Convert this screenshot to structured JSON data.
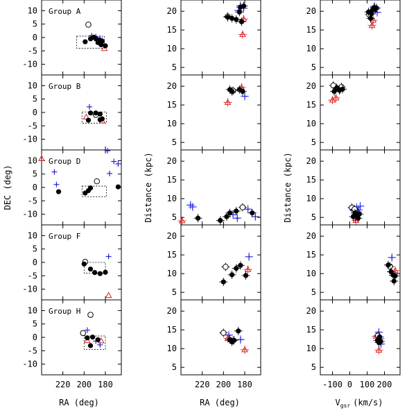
{
  "chart_data": {
    "type": "scatter",
    "title": "",
    "columns": [
      {
        "id": "radec",
        "xlabel": "RA (deg)",
        "ylabel": "DEC (deg)",
        "xlim": [
          240,
          165
        ],
        "ylim": [
          -14,
          14
        ],
        "xticks": [
          220,
          200,
          180
        ],
        "yticks": [
          10,
          5,
          0,
          -5,
          -10
        ]
      },
      {
        "id": "radist",
        "xlabel": "RA (deg)",
        "ylabel": "Distance (kpc)",
        "xlim": [
          240,
          165
        ],
        "ylim": [
          3,
          23
        ],
        "xticks": [
          220,
          200,
          180
        ],
        "yticks": [
          20,
          15,
          10,
          5
        ]
      },
      {
        "id": "vdist",
        "xlabel_main": "V",
        "xlabel_sub": "gsr",
        "xlabel_unit": "(km/s)",
        "xlabel": "Vgsr (km/s)",
        "ylabel": "Distance (kpc)",
        "xlim": [
          -170,
          290
        ],
        "ylim": [
          3,
          23
        ],
        "xticks": [
          -100,
          0,
          100,
          200
        ],
        "yticks": [
          20,
          15,
          10,
          5
        ]
      }
    ],
    "legend": {
      "filled_circle": "black filled circles",
      "open_circle": "black open circles",
      "plus": "blue crosses",
      "triangle": "red open triangles"
    },
    "colors": {
      "black": "#000000",
      "blue": "#2222dd",
      "red": "#dd2222"
    },
    "groups": [
      {
        "name": "Group A",
        "box": {
          "ra": [
            207,
            181
          ],
          "dec": [
            -4,
            0.5
          ]
        },
        "radec": {
          "filled": [
            [
              199,
              -1.6
            ],
            [
              194,
              -0.5
            ],
            [
              191,
              0.1
            ],
            [
              189,
              -0.5
            ],
            [
              187,
              -1.9
            ],
            [
              186,
              -0.9
            ],
            [
              183,
              -1.4
            ],
            [
              180,
              -3.1
            ],
            [
              184,
              -2.7
            ]
          ],
          "open": [
            [
              196,
              4.8
            ]
          ],
          "plus": [
            [
              189,
              0.3
            ],
            [
              185,
              -0.3
            ],
            [
              193,
              0.7
            ]
          ],
          "tri": [
            [
              181,
              -4.1
            ]
          ]
        },
        "radist": {
          "filled": [
            [
              196,
              18.4
            ],
            [
              192,
              18.1
            ],
            [
              188,
              17.8
            ],
            [
              185,
              19.8
            ],
            [
              184,
              21.1
            ],
            [
              181,
              21.4
            ],
            [
              183,
              17.2
            ]
          ],
          "open": [
            [
              196,
              18.6
            ]
          ],
          "plus": [
            [
              186,
              20.2
            ],
            [
              184,
              21.5
            ],
            [
              181,
              20.8
            ]
          ],
          "tri": [
            [
              182,
              13.8
            ],
            [
              181,
              17.9
            ]
          ]
        },
        "vdist": {
          "filled": [
            [
              108,
              19.8
            ],
            [
              125,
              19.3
            ],
            [
              132,
              20.4
            ],
            [
              140,
              21.0
            ],
            [
              146,
              20.5
            ],
            [
              120,
              18.1
            ],
            [
              153,
              20.9
            ]
          ],
          "open": [
            [
              112,
              19.1
            ]
          ],
          "plus": [
            [
              142,
              21.3
            ],
            [
              152,
              20.8
            ],
            [
              158,
              19.7
            ]
          ],
          "tri": [
            [
              135,
              17.6
            ],
            [
              128,
              16.2
            ]
          ]
        }
      },
      {
        "name": "Group B",
        "box": {
          "ra": [
            202,
            179
          ],
          "dec": [
            -4,
            0.2
          ]
        },
        "radec": {
          "filled": [
            [
              194,
              -0.2
            ],
            [
              196,
              -2.9
            ],
            [
              189,
              -0.2
            ],
            [
              185,
              -0.6
            ],
            [
              183,
              -2.4
            ],
            [
              185,
              -2.7
            ]
          ],
          "open": [
            [
              189,
              -0.9
            ]
          ],
          "plus": [
            [
              195,
              2.1
            ]
          ],
          "tri": [
            [
              198,
              -1.7
            ],
            [
              183,
              -3.1
            ]
          ]
        },
        "radist": {
          "filled": [
            [
              194,
              19.1
            ],
            [
              192,
              18.6
            ],
            [
              185,
              19.1
            ],
            [
              182,
              18.6
            ]
          ],
          "open": [
            [
              191,
              18.8
            ]
          ],
          "plus": [
            [
              180,
              17.3
            ]
          ],
          "tri": [
            [
              196,
              15.7
            ],
            [
              183,
              19.7
            ]
          ]
        },
        "vdist": {
          "filled": [
            [
              -90,
              18.6
            ],
            [
              -60,
              18.9
            ],
            [
              -42,
              19.2
            ],
            [
              -75,
              19.6
            ]
          ],
          "open": [
            [
              -95,
              20.2
            ],
            [
              -48,
              19.8
            ]
          ],
          "plus": [
            [
              -55,
              19.1
            ]
          ],
          "tri": [
            [
              -100,
              16.3
            ],
            [
              -80,
              16.9
            ]
          ]
        }
      },
      {
        "name": "Group D",
        "box": {
          "ra": [
            202,
            179
          ],
          "dec": [
            -3.5,
            0.5
          ]
        },
        "radec": {
          "filled": [
            [
              224,
              -1.6
            ],
            [
              199,
              -2.1
            ],
            [
              196,
              -1.2
            ],
            [
              194,
              -0.2
            ],
            [
              168,
              0.2
            ]
          ],
          "open": [
            [
              188,
              2.3
            ]
          ],
          "plus": [
            [
              228,
              5.8
            ],
            [
              226,
              1.1
            ],
            [
              178,
              13.7
            ],
            [
              172,
              9.7
            ],
            [
              168,
              8.8
            ],
            [
              176,
              5.2
            ]
          ],
          "tri": [
            [
              240,
              10.8
            ]
          ]
        },
        "radist": {
          "filled": [
            [
              224,
              4.8
            ],
            [
              203,
              4.2
            ],
            [
              197,
              5.2
            ],
            [
              194,
              6.2
            ],
            [
              188,
              6.7
            ],
            [
              173,
              6.2
            ]
          ],
          "open": [
            [
              182,
              7.7
            ]
          ],
          "plus": [
            [
              229,
              7.8
            ],
            [
              231,
              8.3
            ],
            [
              191,
              5.7
            ],
            [
              187,
              4.8
            ],
            [
              177,
              7.2
            ],
            [
              170,
              5.2
            ]
          ],
          "tri": [
            [
              239,
              4.1
            ]
          ]
        },
        "vdist": {
          "filled": [
            [
              20,
              5.2
            ],
            [
              30,
              6.2
            ],
            [
              40,
              5.5
            ],
            [
              55,
              5.9
            ],
            [
              48,
              4.8
            ],
            [
              35,
              5.8
            ]
          ],
          "open": [
            [
              12,
              7.6
            ],
            [
              28,
              7.2
            ]
          ],
          "plus": [
            [
              25,
              6.8
            ],
            [
              40,
              7.6
            ],
            [
              50,
              7.0
            ],
            [
              60,
              8.0
            ],
            [
              32,
              4.8
            ],
            [
              45,
              6.5
            ]
          ],
          "tri": [
            [
              35,
              4.2
            ]
          ]
        }
      },
      {
        "name": "Group F",
        "box": {
          "ra": [
            200,
            180
          ],
          "dec": [
            -4,
            0
          ]
        },
        "radec": {
          "filled": [
            [
              200,
              -0.6
            ],
            [
              194,
              -2.5
            ],
            [
              190,
              -3.8
            ],
            [
              185,
              -4.2
            ],
            [
              180,
              -3.7
            ]
          ],
          "open": [
            [
              199,
              0.2
            ]
          ],
          "plus": [
            [
              177,
              2.2
            ]
          ],
          "tri": [
            [
              177,
              -12.3
            ]
          ]
        },
        "radist": {
          "filled": [
            [
              200,
              7.8
            ],
            [
              192,
              9.7
            ],
            [
              188,
              11.4
            ],
            [
              184,
              12.2
            ],
            [
              179,
              9.5
            ]
          ],
          "open": [
            [
              198,
              11.8
            ]
          ],
          "plus": [
            [
              176,
              14.5
            ]
          ],
          "tri": [
            [
              177,
              11.1
            ]
          ]
        },
        "vdist": {
          "filled": [
            [
              222,
              12.3
            ],
            [
              238,
              10.5
            ],
            [
              250,
              9.6
            ],
            [
              255,
              8.0
            ],
            [
              262,
              9.4
            ]
          ],
          "open": [
            [
              232,
              11.9
            ]
          ],
          "plus": [
            [
              243,
              14.3
            ]
          ],
          "tri": [
            [
              262,
              10.8
            ]
          ]
        }
      },
      {
        "name": "Group H",
        "box": {
          "ra": [
            200,
            180
          ],
          "dec": [
            -4.5,
            0.5
          ]
        },
        "radec": {
          "filled": [
            [
              197,
              -0.2
            ],
            [
              192,
              0.1
            ],
            [
              194,
              -3.1
            ],
            [
              187,
              -0.9
            ]
          ],
          "open": [
            [
              201,
              1.6
            ],
            [
              194,
              8.4
            ]
          ],
          "plus": [
            [
              197,
              2.7
            ],
            [
              189,
              -1.4
            ],
            [
              185,
              -2.8
            ]
          ],
          "tri": [
            [
              197,
              -1.2
            ],
            [
              184,
              -1.3
            ]
          ]
        },
        "radist": {
          "filled": [
            [
              194,
              12.4
            ],
            [
              192,
              11.8
            ],
            [
              190,
              12.2
            ],
            [
              186,
              14.7
            ]
          ],
          "open": [
            [
              200,
              14.2
            ]
          ],
          "plus": [
            [
              195,
              13.6
            ],
            [
              191,
              12.2
            ],
            [
              184,
              12.4
            ]
          ],
          "tri": [
            [
              196,
              12.7
            ],
            [
              180,
              9.7
            ]
          ]
        },
        "vdist": {
          "filled": [
            [
              160,
              12.2
            ],
            [
              168,
              11.6
            ],
            [
              172,
              13.1
            ],
            [
              178,
              11.9
            ]
          ],
          "open": [
            [
              162,
              13.4
            ]
          ],
          "plus": [
            [
              168,
              14.4
            ],
            [
              175,
              12.6
            ],
            [
              180,
              11.2
            ]
          ],
          "tri": [
            [
              152,
              13.3
            ],
            [
              168,
              9.6
            ]
          ]
        }
      }
    ]
  }
}
